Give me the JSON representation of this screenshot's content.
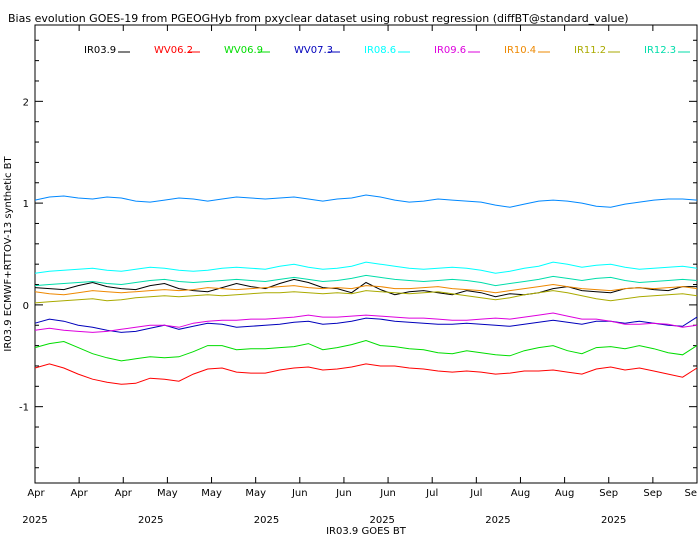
{
  "chart_data": {
    "type": "line",
    "title": "Bias evolution GOES-19 from PGEOGHyb from pxyclear dataset using robust regression (diffBT@standard_value)",
    "xlabel": "IR03.9 GOES BT",
    "ylabel": "IR03.9 ECMWF+RTTOV-13 synthetic BT",
    "ylim": [
      -1.75,
      2.75
    ],
    "yticks": [
      -1,
      0,
      1,
      2
    ],
    "xlim": [
      0,
      1
    ],
    "xtick_labels": [
      "Apr",
      "Apr",
      "Apr",
      "May",
      "May",
      "May",
      "Jun",
      "Jun",
      "Jun",
      "Jul",
      "Jul",
      "Aug",
      "Aug",
      "Sep",
      "Sep",
      "Se"
    ],
    "year_labels": [
      "2025",
      "2025",
      "2025",
      "2025",
      "2025",
      "2025"
    ],
    "grid": false,
    "legend_position": "top",
    "series": [
      {
        "name": "IR03.9",
        "color": "#000000",
        "values": [
          0.17,
          0.16,
          0.15,
          0.19,
          0.22,
          0.18,
          0.16,
          0.15,
          0.19,
          0.21,
          0.16,
          0.14,
          0.13,
          0.17,
          0.21,
          0.18,
          0.16,
          0.21,
          0.25,
          0.22,
          0.17,
          0.16,
          0.12,
          0.22,
          0.15,
          0.1,
          0.13,
          0.14,
          0.12,
          0.1,
          0.14,
          0.12,
          0.08,
          0.11,
          0.1,
          0.12,
          0.16,
          0.18,
          0.14,
          0.13,
          0.12,
          0.16,
          0.17,
          0.15,
          0.14,
          0.18,
          0.18
        ]
      },
      {
        "name": "WV06.2",
        "color": "#ff0000",
        "values": [
          -0.62,
          -0.58,
          -0.62,
          -0.68,
          -0.73,
          -0.76,
          -0.78,
          -0.77,
          -0.72,
          -0.73,
          -0.75,
          -0.68,
          -0.63,
          -0.62,
          -0.66,
          -0.67,
          -0.67,
          -0.64,
          -0.62,
          -0.61,
          -0.64,
          -0.63,
          -0.61,
          -0.58,
          -0.6,
          -0.6,
          -0.62,
          -0.63,
          -0.65,
          -0.66,
          -0.65,
          -0.66,
          -0.68,
          -0.67,
          -0.65,
          -0.65,
          -0.64,
          -0.66,
          -0.68,
          -0.63,
          -0.61,
          -0.64,
          -0.62,
          -0.65,
          -0.68,
          -0.71,
          -0.62
        ]
      },
      {
        "name": "WV06.9",
        "color": "#00dd00",
        "values": [
          -0.42,
          -0.38,
          -0.36,
          -0.42,
          -0.48,
          -0.52,
          -0.55,
          -0.53,
          -0.51,
          -0.52,
          -0.51,
          -0.46,
          -0.4,
          -0.4,
          -0.44,
          -0.43,
          -0.43,
          -0.42,
          -0.41,
          -0.38,
          -0.44,
          -0.42,
          -0.39,
          -0.35,
          -0.4,
          -0.41,
          -0.43,
          -0.44,
          -0.47,
          -0.48,
          -0.45,
          -0.47,
          -0.49,
          -0.5,
          -0.45,
          -0.42,
          -0.4,
          -0.45,
          -0.48,
          -0.42,
          -0.41,
          -0.43,
          -0.4,
          -0.43,
          -0.47,
          -0.49,
          -0.4
        ]
      },
      {
        "name": "WV07.3",
        "color": "#0000bb",
        "values": [
          -0.18,
          -0.14,
          -0.16,
          -0.2,
          -0.22,
          -0.25,
          -0.27,
          -0.26,
          -0.23,
          -0.2,
          -0.24,
          -0.21,
          -0.18,
          -0.19,
          -0.22,
          -0.21,
          -0.2,
          -0.19,
          -0.17,
          -0.16,
          -0.19,
          -0.18,
          -0.16,
          -0.13,
          -0.14,
          -0.16,
          -0.17,
          -0.18,
          -0.19,
          -0.19,
          -0.18,
          -0.19,
          -0.2,
          -0.21,
          -0.19,
          -0.17,
          -0.15,
          -0.17,
          -0.19,
          -0.16,
          -0.16,
          -0.18,
          -0.16,
          -0.18,
          -0.2,
          -0.21,
          -0.12
        ]
      },
      {
        "name": "IR08.6",
        "color": "#00ffff",
        "values": [
          0.31,
          0.33,
          0.34,
          0.35,
          0.36,
          0.34,
          0.33,
          0.35,
          0.37,
          0.36,
          0.34,
          0.33,
          0.34,
          0.36,
          0.37,
          0.36,
          0.35,
          0.38,
          0.4,
          0.37,
          0.35,
          0.36,
          0.38,
          0.42,
          0.4,
          0.38,
          0.36,
          0.35,
          0.36,
          0.37,
          0.36,
          0.34,
          0.31,
          0.33,
          0.36,
          0.38,
          0.42,
          0.4,
          0.37,
          0.39,
          0.4,
          0.37,
          0.35,
          0.36,
          0.37,
          0.38,
          0.36
        ]
      },
      {
        "name": "IR09.6",
        "color": "#dd00dd",
        "values": [
          -0.25,
          -0.23,
          -0.25,
          -0.26,
          -0.27,
          -0.26,
          -0.24,
          -0.22,
          -0.2,
          -0.2,
          -0.22,
          -0.18,
          -0.16,
          -0.15,
          -0.15,
          -0.14,
          -0.14,
          -0.13,
          -0.12,
          -0.1,
          -0.12,
          -0.12,
          -0.11,
          -0.1,
          -0.11,
          -0.12,
          -0.13,
          -0.13,
          -0.14,
          -0.15,
          -0.15,
          -0.14,
          -0.13,
          -0.14,
          -0.12,
          -0.1,
          -0.08,
          -0.11,
          -0.14,
          -0.14,
          -0.16,
          -0.19,
          -0.19,
          -0.18,
          -0.19,
          -0.22,
          -0.2
        ]
      },
      {
        "name": "IR10.4",
        "color": "#ee8800",
        "values": [
          0.13,
          0.11,
          0.1,
          0.12,
          0.14,
          0.13,
          0.12,
          0.13,
          0.14,
          0.15,
          0.14,
          0.15,
          0.17,
          0.16,
          0.15,
          0.16,
          0.17,
          0.18,
          0.19,
          0.17,
          0.16,
          0.17,
          0.16,
          0.19,
          0.18,
          0.16,
          0.16,
          0.17,
          0.18,
          0.16,
          0.15,
          0.14,
          0.12,
          0.14,
          0.16,
          0.18,
          0.2,
          0.18,
          0.16,
          0.15,
          0.14,
          0.16,
          0.17,
          0.16,
          0.17,
          0.18,
          0.16
        ]
      },
      {
        "name": "IR11.2",
        "color": "#aaaa00",
        "values": [
          0.02,
          0.03,
          0.04,
          0.05,
          0.06,
          0.04,
          0.05,
          0.07,
          0.08,
          0.09,
          0.08,
          0.09,
          0.1,
          0.09,
          0.1,
          0.11,
          0.12,
          0.12,
          0.13,
          0.12,
          0.11,
          0.12,
          0.11,
          0.14,
          0.13,
          0.12,
          0.11,
          0.12,
          0.13,
          0.11,
          0.09,
          0.07,
          0.05,
          0.07,
          0.1,
          0.12,
          0.14,
          0.12,
          0.09,
          0.06,
          0.04,
          0.06,
          0.08,
          0.09,
          0.1,
          0.11,
          0.09
        ]
      },
      {
        "name": "IR12.3",
        "color": "#00ddaa",
        "values": [
          0.19,
          0.2,
          0.21,
          0.22,
          0.23,
          0.21,
          0.2,
          0.22,
          0.24,
          0.25,
          0.23,
          0.22,
          0.23,
          0.24,
          0.25,
          0.24,
          0.23,
          0.25,
          0.27,
          0.25,
          0.23,
          0.24,
          0.26,
          0.29,
          0.27,
          0.25,
          0.24,
          0.23,
          0.24,
          0.25,
          0.24,
          0.22,
          0.19,
          0.21,
          0.23,
          0.25,
          0.28,
          0.26,
          0.24,
          0.26,
          0.27,
          0.24,
          0.22,
          0.23,
          0.24,
          0.25,
          0.24
        ]
      },
      {
        "name": "",
        "color": "#0088ff",
        "values": [
          1.03,
          1.06,
          1.07,
          1.05,
          1.04,
          1.06,
          1.05,
          1.02,
          1.01,
          1.03,
          1.05,
          1.04,
          1.02,
          1.04,
          1.06,
          1.05,
          1.04,
          1.05,
          1.06,
          1.04,
          1.02,
          1.04,
          1.05,
          1.08,
          1.06,
          1.03,
          1.01,
          1.02,
          1.04,
          1.03,
          1.02,
          1.01,
          0.98,
          0.96,
          0.99,
          1.02,
          1.03,
          1.02,
          1.0,
          0.97,
          0.96,
          0.99,
          1.01,
          1.03,
          1.04,
          1.04,
          1.03
        ]
      }
    ]
  }
}
